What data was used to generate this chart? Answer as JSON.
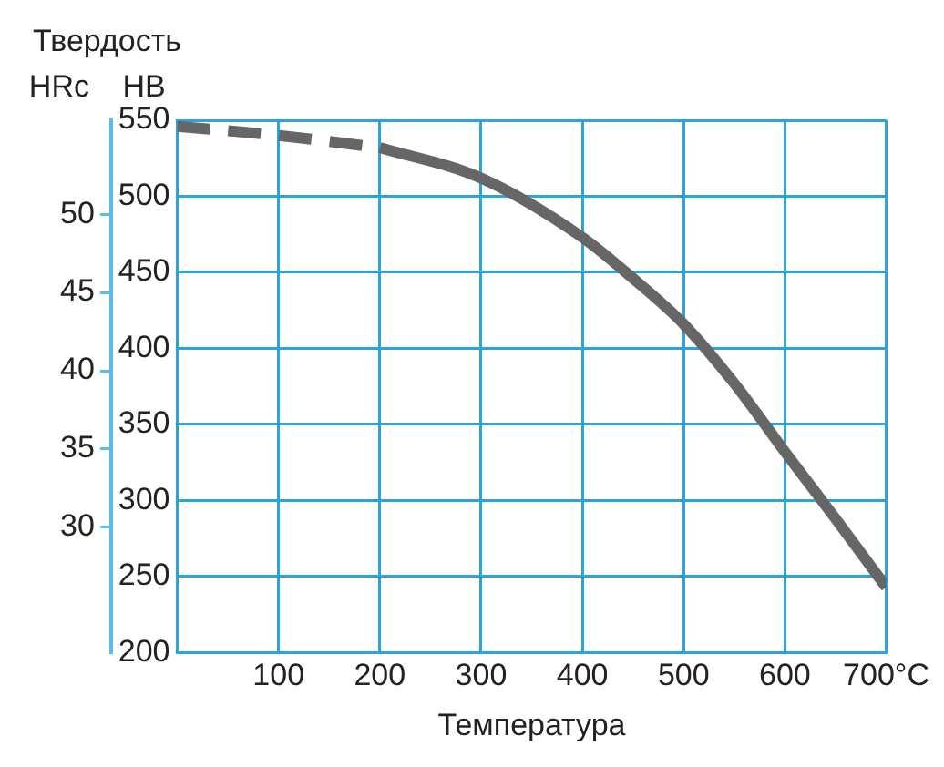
{
  "chart_data": {
    "type": "line",
    "title": "Твердость",
    "xlabel": "Температура",
    "ylabel": "HB",
    "y2label": "HRc",
    "series": [
      {
        "color": "#666666",
        "line_style": "dashed",
        "x": [
          0,
          100,
          200
        ],
        "values": [
          546,
          540,
          532
        ]
      },
      {
        "color": "#666666",
        "line_style": "solid",
        "x": [
          200,
          300,
          400,
          450,
          500,
          550,
          600,
          650,
          700
        ],
        "values": [
          532,
          512,
          473,
          446,
          416,
          377,
          332,
          288,
          243
        ]
      }
    ],
    "xlim": [
      0,
      700
    ],
    "xticks": [
      100,
      200,
      300,
      400,
      500,
      600,
      {
        "value": 700,
        "label": "700°C"
      }
    ],
    "ylim": [
      200,
      550
    ],
    "yticks": [
      200,
      250,
      300,
      350,
      400,
      450,
      500,
      550
    ],
    "y2lim": [
      22,
      56
    ],
    "y2ticks": [
      30,
      35,
      40,
      45,
      50
    ],
    "grid": true,
    "legend": false,
    "marker": "none"
  }
}
